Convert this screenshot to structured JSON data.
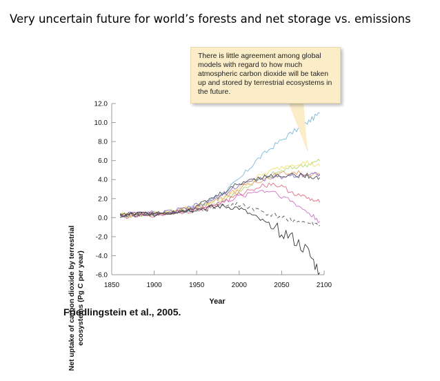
{
  "slide": {
    "title": "Very uncertain future for world’s forests and net storage vs. emissions",
    "citation": "Friedlingstein et al., 2005."
  },
  "callout": {
    "text": "There is little agreement among global models with regard to how much atmospheric carbon dioxide will be taken up and stored by terrestrial ecosystems in the future."
  },
  "chart_data": {
    "type": "line",
    "title": "",
    "xlabel": "Year",
    "ylabel": "Net uptake of carbon dioxide by terrestrial ecosystems (Pg C per year)",
    "xlim": [
      1850,
      2100
    ],
    "ylim": [
      -6.0,
      12.0
    ],
    "x_ticks": [
      "1850",
      "1900",
      "1950",
      "2000",
      "2050",
      "2100"
    ],
    "y_ticks": [
      "12.0",
      "10.0",
      "8.0",
      "6.0",
      "4.0",
      "2.0",
      "0.0",
      "-2.0",
      "-4.0",
      "-6.0"
    ],
    "x_tick_values": [
      1850,
      1900,
      1950,
      2000,
      2050,
      2100
    ],
    "y_tick_values": [
      12,
      10,
      8,
      6,
      4,
      2,
      0,
      -2,
      -4,
      -6
    ],
    "grid": false,
    "x": [
      1860,
      1880,
      1900,
      1920,
      1940,
      1960,
      1980,
      2000,
      2020,
      2040,
      2060,
      2080,
      2095
    ],
    "series": [
      {
        "color": "#7ab8dc",
        "values": [
          0.2,
          0.3,
          0.4,
          0.5,
          0.8,
          1.5,
          2.5,
          4.0,
          6.0,
          7.5,
          8.8,
          10.0,
          11.0
        ]
      },
      {
        "color": "#b0d870",
        "values": [
          0.3,
          0.2,
          0.5,
          0.6,
          0.9,
          1.2,
          1.8,
          2.8,
          3.8,
          4.6,
          5.2,
          5.6,
          6.0
        ]
      },
      {
        "color": "#f0e070",
        "values": [
          0.4,
          0.3,
          0.4,
          0.7,
          1.0,
          1.4,
          2.0,
          3.2,
          4.2,
          5.0,
          5.6,
          5.8,
          5.4
        ]
      },
      {
        "color": "#e6a070",
        "values": [
          0.3,
          0.4,
          0.5,
          0.6,
          0.9,
          1.3,
          2.2,
          3.0,
          3.8,
          4.4,
          4.8,
          4.6,
          4.4
        ]
      },
      {
        "color": "#e07088",
        "values": [
          0.1,
          0.2,
          0.3,
          0.5,
          0.7,
          1.0,
          1.6,
          2.4,
          3.2,
          3.6,
          2.8,
          2.0,
          1.6
        ]
      },
      {
        "color": "#d070c0",
        "values": [
          0.2,
          0.3,
          0.3,
          0.5,
          0.8,
          1.1,
          1.6,
          2.2,
          2.8,
          2.8,
          1.8,
          0.6,
          -0.4
        ]
      },
      {
        "color": "#8a70c8",
        "values": [
          0.3,
          0.4,
          0.5,
          0.6,
          1.0,
          1.5,
          2.4,
          3.4,
          4.0,
          4.2,
          4.4,
          4.6,
          4.6
        ]
      },
      {
        "color": "#505050",
        "values": [
          0.4,
          0.3,
          0.5,
          0.6,
          0.9,
          1.6,
          2.6,
          3.6,
          4.2,
          4.4,
          4.5,
          4.4,
          4.2
        ]
      },
      {
        "color": "#333333",
        "values": [
          0.2,
          0.4,
          0.4,
          0.6,
          0.8,
          1.0,
          1.2,
          1.0,
          0.0,
          -1.0,
          -2.0,
          -3.5,
          -5.8
        ]
      },
      {
        "color": "#555555",
        "dashed": true,
        "values": [
          0.3,
          0.3,
          0.4,
          0.5,
          0.7,
          0.9,
          1.2,
          1.4,
          0.8,
          0.2,
          -0.2,
          -0.6,
          -0.8
        ]
      }
    ]
  }
}
